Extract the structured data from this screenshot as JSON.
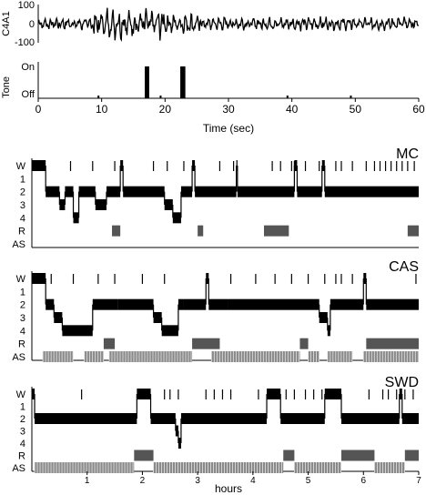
{
  "colors": {
    "ink": "#000000",
    "as_gray": "#555555",
    "axis": "#000000"
  },
  "chart_data": [
    {
      "type": "line",
      "ylabel": "C4A1",
      "ylim": [
        -100,
        100
      ],
      "yticks": [
        "100",
        "0",
        "-100"
      ],
      "xlim": [
        0,
        60
      ],
      "grid": false
    },
    {
      "type": "bar",
      "xlabel": "Time (sec)",
      "ylabel": "Tone",
      "xlim": [
        0,
        60
      ],
      "xticks": [
        "0",
        "10",
        "20",
        "30",
        "40",
        "50",
        "60"
      ],
      "yticks": [
        "On",
        "Off"
      ],
      "tones_on": [
        [
          16.8,
          17.5
        ],
        [
          22.4,
          23.2
        ]
      ],
      "off_markers": [
        9.5,
        17.3,
        19.3,
        39.3,
        49.3
      ]
    },
    {
      "type": "line",
      "title": "MC",
      "stages": [
        "W",
        "1",
        "2",
        "3",
        "4",
        "R",
        "AS"
      ],
      "xlim": [
        0,
        7
      ],
      "hypnogram": [
        [
          0,
          1
        ],
        [
          0.25,
          3
        ],
        [
          0.5,
          4
        ],
        [
          0.6,
          3
        ],
        [
          0.75,
          5
        ],
        [
          0.85,
          3
        ],
        [
          1.15,
          4
        ],
        [
          1.35,
          3
        ],
        [
          1.6,
          1
        ],
        [
          1.65,
          3
        ],
        [
          2.4,
          4
        ],
        [
          2.55,
          5
        ],
        [
          2.7,
          3
        ],
        [
          2.9,
          1
        ],
        [
          2.95,
          3
        ],
        [
          3.7,
          1
        ],
        [
          3.72,
          3
        ],
        [
          4.75,
          1
        ],
        [
          4.8,
          3
        ],
        [
          5.25,
          1
        ],
        [
          5.3,
          3
        ],
        [
          7,
          3
        ]
      ],
      "wake_ticks": [
        0.7,
        1.1,
        1.5,
        2.2,
        2.45,
        2.75,
        3.4,
        3.65,
        4.35,
        4.5,
        4.7,
        4.75,
        4.95,
        5.2,
        5.5,
        5.6,
        5.8,
        6.05,
        6.2,
        6.3,
        6.4,
        6.5,
        6.6,
        6.7,
        6.8,
        6.92
      ],
      "rem": [
        [
          1.45,
          1.6
        ],
        [
          3.0,
          3.1
        ],
        [
          4.2,
          4.65
        ],
        [
          6.8,
          7.0
        ]
      ],
      "as": []
    },
    {
      "type": "line",
      "title": "CAS",
      "stages": [
        "W",
        "1",
        "2",
        "3",
        "4",
        "R",
        "AS"
      ],
      "xlim": [
        0,
        7
      ],
      "hypnogram": [
        [
          0,
          1
        ],
        [
          0.25,
          3
        ],
        [
          0.4,
          4
        ],
        [
          0.55,
          5
        ],
        [
          1.1,
          3
        ],
        [
          1.55,
          3
        ],
        [
          2.2,
          4
        ],
        [
          2.35,
          5
        ],
        [
          2.65,
          3
        ],
        [
          2.75,
          3
        ],
        [
          3.15,
          1
        ],
        [
          3.2,
          3
        ],
        [
          3.55,
          3
        ],
        [
          5.2,
          4
        ],
        [
          5.35,
          5
        ],
        [
          5.4,
          3
        ],
        [
          6.0,
          1
        ],
        [
          6.05,
          3
        ],
        [
          7,
          3
        ]
      ],
      "wake_ticks": [
        0.35,
        0.75,
        1.2,
        1.5,
        2.0,
        2.4,
        3.6,
        4.05,
        4.4,
        4.7,
        5.0,
        5.3,
        5.5,
        5.6,
        5.8,
        6.95
      ],
      "rem": [
        [
          1.3,
          1.5
        ],
        [
          2.9,
          3.4
        ],
        [
          4.85,
          5.0
        ],
        [
          6.05,
          7.0
        ]
      ],
      "as": [
        [
          0.2,
          0.75
        ],
        [
          0.95,
          1.3
        ],
        [
          1.4,
          2.9
        ],
        [
          3.25,
          4.85
        ],
        [
          5.0,
          5.2
        ],
        [
          5.35,
          5.8
        ],
        [
          6.0,
          7.0
        ]
      ]
    },
    {
      "type": "line",
      "title": "SWD",
      "stages": [
        "W",
        "1",
        "2",
        "3",
        "4",
        "R",
        "AS"
      ],
      "xlim": [
        0,
        7
      ],
      "xlabel": "hours",
      "xticks": [
        "1",
        "2",
        "3",
        "4",
        "5",
        "6",
        "7"
      ],
      "hypnogram": [
        [
          0,
          1
        ],
        [
          0.05,
          3
        ],
        [
          1.9,
          1
        ],
        [
          2.15,
          3
        ],
        [
          2.6,
          4
        ],
        [
          2.65,
          5
        ],
        [
          2.7,
          3
        ],
        [
          4.25,
          1
        ],
        [
          4.5,
          3
        ],
        [
          5.3,
          1
        ],
        [
          5.6,
          3
        ],
        [
          6.65,
          1
        ],
        [
          6.7,
          3
        ],
        [
          7,
          3
        ]
      ],
      "wake_ticks": [
        0.9,
        2.4,
        2.5,
        2.65,
        3.15,
        3.3,
        3.45,
        3.6,
        4.1,
        4.6,
        4.75,
        4.95,
        5.1,
        5.25,
        5.4,
        6.1,
        6.35,
        6.45,
        6.6,
        6.75,
        6.9
      ],
      "rem": [
        [
          1.85,
          2.2
        ],
        [
          4.55,
          4.75
        ],
        [
          5.6,
          6.2
        ],
        [
          6.75,
          7.0
        ]
      ],
      "as": [
        [
          0.05,
          1.85
        ],
        [
          2.2,
          4.55
        ],
        [
          4.75,
          5.6
        ],
        [
          6.2,
          6.75
        ]
      ]
    }
  ]
}
